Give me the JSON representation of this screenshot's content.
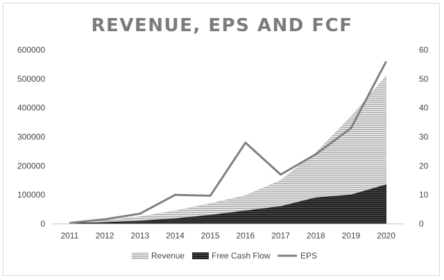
{
  "chart_data": {
    "type": "area",
    "title": "REVENUE, EPS AND FCF",
    "categories": [
      "2011",
      "2012",
      "2013",
      "2014",
      "2015",
      "2016",
      "2017",
      "2018",
      "2019",
      "2020"
    ],
    "series": [
      {
        "name": "Revenue",
        "type": "area",
        "axis": "left",
        "values": [
          4000,
          12000,
          25000,
          45000,
          70000,
          98000,
          150000,
          245000,
          370000,
          510000
        ]
      },
      {
        "name": "Free Cash Flow",
        "type": "area",
        "axis": "left",
        "values": [
          2000,
          5000,
          10000,
          18000,
          30000,
          45000,
          60000,
          90000,
          100000,
          135000
        ]
      },
      {
        "name": "EPS",
        "type": "line",
        "axis": "right",
        "values": [
          0.3,
          1.6,
          3.5,
          10,
          9.7,
          28,
          17,
          24,
          33,
          56
        ]
      }
    ],
    "ylim_left": [
      0,
      600000
    ],
    "yticks_left": [
      "0",
      "100000",
      "200000",
      "300000",
      "400000",
      "500000",
      "600000"
    ],
    "ylim_right": [
      0,
      60
    ],
    "yticks_right": [
      "0",
      "10",
      "20",
      "30",
      "40",
      "50",
      "60"
    ],
    "legend_position": "bottom",
    "colors": {
      "revenue": "#9a9a9a",
      "fcf": "#1a1a1a",
      "eps": "#808080",
      "title": "#7b7b7b"
    }
  }
}
